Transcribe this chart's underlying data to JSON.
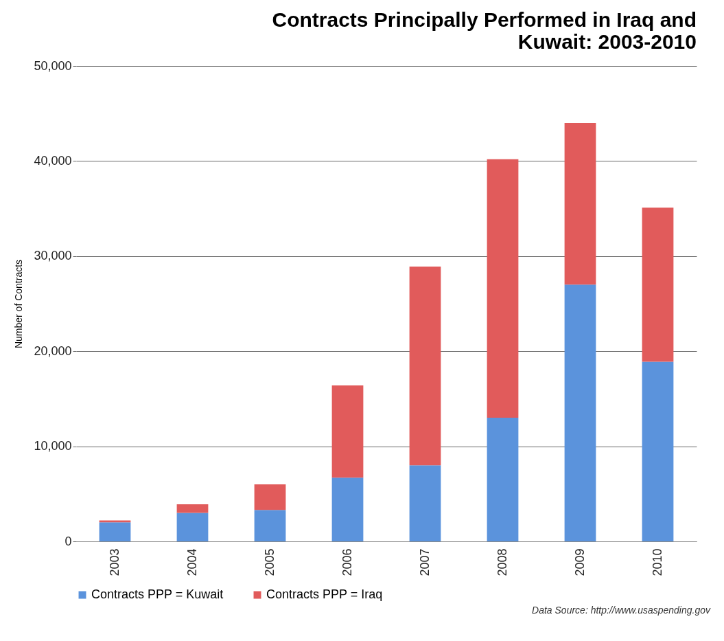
{
  "chart_data": {
    "type": "bar",
    "title": [
      "Contracts Principally Performed in Iraq and",
      "Kuwait:  2003-2010"
    ],
    "ylabel": "Number of Contracts",
    "categories": [
      "2003",
      "2004",
      "2005",
      "2006",
      "2007",
      "2008",
      "2009",
      "2010"
    ],
    "series": [
      {
        "name": "Contracts PPP = Kuwait",
        "color": "#5b93dc",
        "values": [
          2000,
          3000,
          3300,
          6700,
          8000,
          13000,
          27000,
          18900
        ]
      },
      {
        "name": "Contracts PPP = Iraq",
        "color": "#e15b5b",
        "values": [
          200,
          900,
          2700,
          9700,
          20900,
          27200,
          17000,
          16200
        ]
      }
    ],
    "stacked": true,
    "ylim": [
      0,
      50000
    ],
    "yticks": [
      {
        "value": 0,
        "label": "0"
      },
      {
        "value": 10000,
        "label": "10,000"
      },
      {
        "value": 20000,
        "label": "20,000"
      },
      {
        "value": 30000,
        "label": "30,000"
      },
      {
        "value": 40000,
        "label": "40,000"
      },
      {
        "value": 50000,
        "label": "50,000"
      }
    ],
    "grid": "y",
    "legend": "bottom",
    "annotations": [
      "Data Source:  http://www.usaspending.gov"
    ]
  }
}
